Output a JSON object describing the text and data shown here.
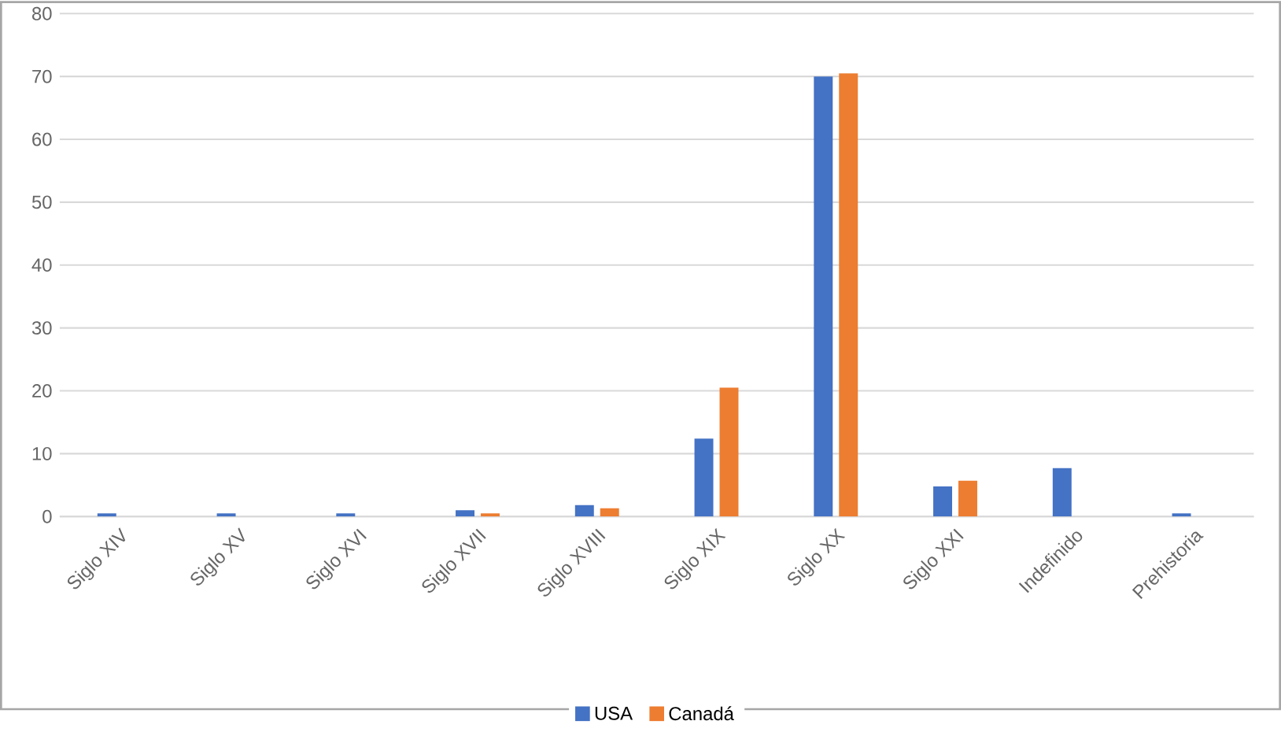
{
  "chart_data": {
    "type": "bar",
    "categories": [
      "Siglo XIV",
      "Siglo XV",
      "Siglo XVI",
      "Siglo XVII",
      "Siglo XVIII",
      "Siglo XIX",
      "Siglo XX",
      "Siglo XXI",
      "Indefinido",
      "Prehistoria"
    ],
    "series": [
      {
        "name": "USA",
        "color": "#4472c4",
        "values": [
          0.5,
          0.5,
          0.5,
          1,
          1.8,
          12.4,
          70,
          4.8,
          7.7,
          0.5
        ]
      },
      {
        "name": "Canadá",
        "color": "#ed7d31",
        "values": [
          null,
          null,
          null,
          0.5,
          1.3,
          20.5,
          70.5,
          5.7,
          null,
          null
        ]
      }
    ],
    "ylim": [
      0,
      80
    ],
    "yticks": [
      0,
      10,
      20,
      30,
      40,
      50,
      60,
      70,
      80
    ],
    "grid": "y",
    "legend": "bottom"
  }
}
